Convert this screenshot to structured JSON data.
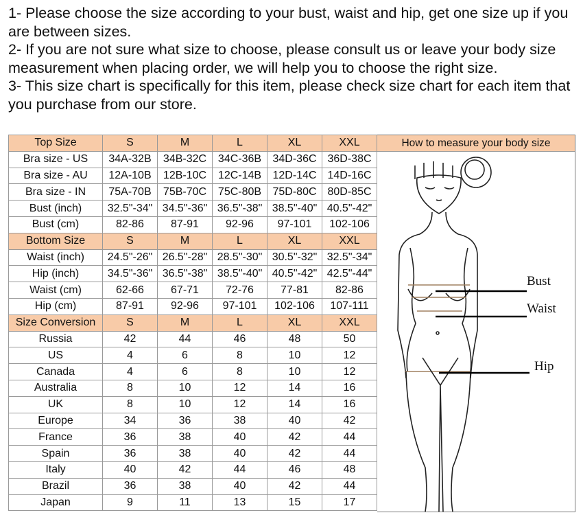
{
  "notes": [
    "1- Please choose the size according to your bust, waist and hip, get one size up if you are between sizes.",
    "2- If you are not sure what size to choose, please consult us or leave your body size measurement when placing order, we will help you to choose the right size.",
    "3- This size chart is specifically for this item, please check size chart for each item that you purchase from our store."
  ],
  "header_color": "#f8cba8",
  "table": {
    "rows": [
      {
        "header": true,
        "cells": [
          "Top Size",
          "S",
          "M",
          "L",
          "XL",
          "XXL"
        ]
      },
      {
        "cells": [
          "Bra size - US",
          "34A-32B",
          "34B-32C",
          "34C-36B",
          "34D-36C",
          "36D-38C"
        ]
      },
      {
        "cells": [
          "Bra size - AU",
          "12A-10B",
          "12B-10C",
          "12C-14B",
          "12D-14C",
          "14D-16C"
        ]
      },
      {
        "cells": [
          "Bra size - IN",
          "75A-70B",
          "75B-70C",
          "75C-80B",
          "75D-80C",
          "80D-85C"
        ]
      },
      {
        "cells": [
          "Bust (inch)",
          "32.5\"-34\"",
          "34.5\"-36\"",
          "36.5\"-38\"",
          "38.5\"-40\"",
          "40.5\"-42\""
        ]
      },
      {
        "cells": [
          "Bust (cm)",
          "82-86",
          "87-91",
          "92-96",
          "97-101",
          "102-106"
        ]
      },
      {
        "header": true,
        "cells": [
          "Bottom Size",
          "S",
          "M",
          "L",
          "XL",
          "XXL"
        ]
      },
      {
        "cells": [
          "Waist (inch)",
          "24.5\"-26\"",
          "26.5\"-28\"",
          "28.5\"-30\"",
          "30.5\"-32\"",
          "32.5\"-34\""
        ]
      },
      {
        "cells": [
          "Hip (inch)",
          "34.5\"-36\"",
          "36.5\"-38\"",
          "38.5\"-40\"",
          "40.5\"-42\"",
          "42.5\"-44\""
        ]
      },
      {
        "cells": [
          "Waist (cm)",
          "62-66",
          "67-71",
          "72-76",
          "77-81",
          "82-86"
        ]
      },
      {
        "cells": [
          "Hip (cm)",
          "87-91",
          "92-96",
          "97-101",
          "102-106",
          "107-111"
        ]
      },
      {
        "header": true,
        "cells": [
          "Size Conversion",
          "S",
          "M",
          "L",
          "XL",
          "XXL"
        ]
      },
      {
        "cells": [
          "Russia",
          "42",
          "44",
          "46",
          "48",
          "50"
        ]
      },
      {
        "cells": [
          "US",
          "4",
          "6",
          "8",
          "10",
          "12"
        ]
      },
      {
        "cells": [
          "Canada",
          "4",
          "6",
          "8",
          "10",
          "12"
        ]
      },
      {
        "cells": [
          "Australia",
          "8",
          "10",
          "12",
          "14",
          "16"
        ]
      },
      {
        "cells": [
          "UK",
          "8",
          "10",
          "12",
          "14",
          "16"
        ]
      },
      {
        "cells": [
          "Europe",
          "34",
          "36",
          "38",
          "40",
          "42"
        ]
      },
      {
        "cells": [
          "France",
          "36",
          "38",
          "40",
          "42",
          "44"
        ]
      },
      {
        "cells": [
          "Spain",
          "36",
          "38",
          "40",
          "42",
          "44"
        ]
      },
      {
        "cells": [
          "Italy",
          "40",
          "42",
          "44",
          "46",
          "48"
        ]
      },
      {
        "cells": [
          "Brazil",
          "36",
          "38",
          "40",
          "42",
          "44"
        ]
      },
      {
        "cells": [
          "Japan",
          "9",
          "11",
          "13",
          "15",
          "17"
        ]
      }
    ]
  },
  "panel": {
    "title": "How to measure your body size",
    "labels": {
      "bust": "Bust",
      "waist": "Waist",
      "hip": "Hip"
    }
  }
}
